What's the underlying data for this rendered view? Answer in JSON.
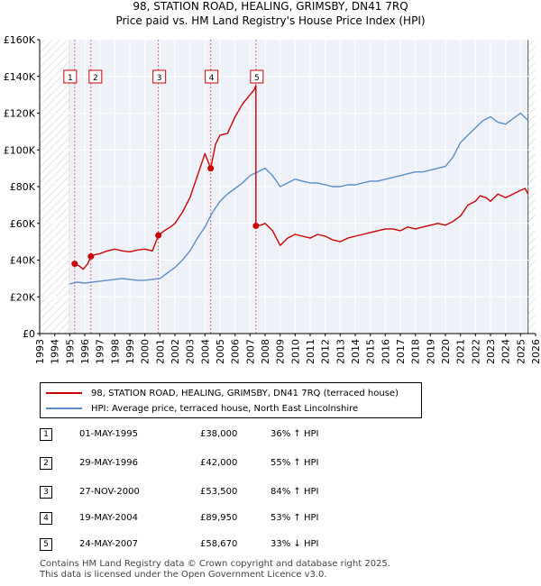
{
  "title_line1": "98, STATION ROAD, HEALING, GRIMSBY, DN41 7RQ",
  "title_line2": "Price paid vs. HM Land Registry's House Price Index (HPI)",
  "colors": {
    "property": "#cc0000",
    "hpi": "#5b8dc9",
    "grid": "#ffffff",
    "plot_bg": "#eef2f8",
    "hatch": "#d6d6d6",
    "sale_line": "#e06666"
  },
  "chart_data": {
    "type": "line",
    "title": "Price paid vs. HM Land Registry's House Price Index (HPI)",
    "xlabel": "",
    "ylabel": "",
    "xlim": [
      1993,
      2026
    ],
    "ylim": [
      0,
      160000
    ],
    "y_ticks": [
      0,
      20000,
      40000,
      60000,
      80000,
      100000,
      120000,
      140000,
      160000
    ],
    "y_tick_labels": [
      "£0",
      "£20K",
      "£40K",
      "£60K",
      "£80K",
      "£100K",
      "£120K",
      "£140K",
      "£160K"
    ],
    "x_ticks": [
      "1993",
      "1994",
      "1995",
      "1996",
      "1997",
      "1998",
      "1999",
      "2000",
      "2001",
      "2002",
      "2003",
      "2004",
      "2005",
      "2006",
      "2007",
      "2008",
      "2009",
      "2010",
      "2011",
      "2012",
      "2013",
      "2014",
      "2015",
      "2016",
      "2017",
      "2018",
      "2019",
      "2020",
      "2021",
      "2022",
      "2023",
      "2024",
      "2025",
      "2026"
    ],
    "data_range": [
      1995.0,
      2025.5
    ],
    "series": [
      {
        "name": "98, STATION ROAD, HEALING, GRIMSBY, DN41 7RQ (terraced house)",
        "color": "#cc0000",
        "x": [
          1995.33,
          1995.6,
          1995.9,
          1996.2,
          1996.41,
          1996.7,
          1997.0,
          1997.5,
          1998.0,
          1998.5,
          1999.0,
          1999.5,
          2000.0,
          2000.5,
          2000.9,
          2001.3,
          2001.7,
          2002.0,
          2002.5,
          2003.0,
          2003.5,
          2004.0,
          2004.38,
          2004.7,
          2005.0,
          2005.5,
          2006.0,
          2006.5,
          2007.0,
          2007.3,
          2007.39,
          2007.39,
          2007.7,
          2008.0,
          2008.5,
          2009.0,
          2009.5,
          2010.0,
          2010.5,
          2011.0,
          2011.5,
          2012.0,
          2012.5,
          2013.0,
          2013.5,
          2014.0,
          2014.5,
          2015.0,
          2015.5,
          2016.0,
          2016.5,
          2017.0,
          2017.5,
          2018.0,
          2018.5,
          2019.0,
          2019.5,
          2020.0,
          2020.5,
          2021.0,
          2021.5,
          2022.0,
          2022.3,
          2022.7,
          2023.0,
          2023.5,
          2024.0,
          2024.5,
          2025.0,
          2025.3,
          2025.5
        ],
        "y": [
          38000,
          37000,
          35000,
          38000,
          42000,
          43000,
          43500,
          45000,
          46000,
          45000,
          44500,
          45500,
          46000,
          45000,
          53500,
          56000,
          58000,
          60000,
          66000,
          74000,
          86000,
          98000,
          89950,
          103000,
          108000,
          109000,
          118000,
          125000,
          130000,
          133000,
          135000,
          58670,
          59000,
          60000,
          56000,
          48000,
          52000,
          54000,
          53000,
          52000,
          54000,
          53000,
          51000,
          50000,
          52000,
          53000,
          54000,
          55000,
          56000,
          57000,
          57000,
          56000,
          58000,
          57000,
          58000,
          59000,
          60000,
          59000,
          61000,
          64000,
          70000,
          72000,
          75000,
          74000,
          72000,
          76000,
          74000,
          76000,
          78000,
          79000,
          76000
        ]
      },
      {
        "name": "HPI: Average price, terraced house, North East Lincolnshire",
        "color": "#5b8dc9",
        "x": [
          1995.0,
          1995.5,
          1996.0,
          1996.5,
          1997.0,
          1997.5,
          1998.0,
          1998.5,
          1999.0,
          1999.5,
          2000.0,
          2000.5,
          2001.0,
          2001.5,
          2002.0,
          2002.5,
          2003.0,
          2003.5,
          2004.0,
          2004.5,
          2005.0,
          2005.5,
          2006.0,
          2006.5,
          2007.0,
          2007.5,
          2008.0,
          2008.5,
          2009.0,
          2009.5,
          2010.0,
          2010.5,
          2011.0,
          2011.5,
          2012.0,
          2012.5,
          2013.0,
          2013.5,
          2014.0,
          2014.5,
          2015.0,
          2015.5,
          2016.0,
          2016.5,
          2017.0,
          2017.5,
          2018.0,
          2018.5,
          2019.0,
          2019.5,
          2020.0,
          2020.5,
          2021.0,
          2021.5,
          2022.0,
          2022.5,
          2023.0,
          2023.5,
          2024.0,
          2024.5,
          2025.0,
          2025.5
        ],
        "y": [
          27000,
          28000,
          27500,
          28000,
          28500,
          29000,
          29500,
          30000,
          29500,
          29000,
          29000,
          29500,
          30000,
          33000,
          36000,
          40000,
          45000,
          52000,
          58000,
          66000,
          72000,
          76000,
          79000,
          82000,
          86000,
          88000,
          90000,
          86000,
          80000,
          82000,
          84000,
          83000,
          82000,
          82000,
          81000,
          80000,
          80000,
          81000,
          81000,
          82000,
          83000,
          83000,
          84000,
          85000,
          86000,
          87000,
          88000,
          88000,
          89000,
          90000,
          91000,
          96000,
          104000,
          108000,
          112000,
          116000,
          118000,
          115000,
          114000,
          117000,
          120000,
          116000
        ]
      }
    ],
    "sales": [
      {
        "id": "1",
        "x": 1995.33,
        "price": 38000
      },
      {
        "id": "2",
        "x": 1996.41,
        "price": 42000
      },
      {
        "id": "3",
        "x": 2000.9,
        "price": 53500
      },
      {
        "id": "4",
        "x": 2004.38,
        "price": 89950
      },
      {
        "id": "5",
        "x": 2007.39,
        "price": 58670
      }
    ]
  },
  "legend": {
    "property_label": "98, STATION ROAD, HEALING, GRIMSBY, DN41 7RQ (terraced house)",
    "hpi_label": "HPI: Average price, terraced house, North East Lincolnshire"
  },
  "transactions": [
    {
      "id": "1",
      "date": "01-MAY-1995",
      "price": "£38,000",
      "hpi": "36% ↑ HPI"
    },
    {
      "id": "2",
      "date": "29-MAY-1996",
      "price": "£42,000",
      "hpi": "55% ↑ HPI"
    },
    {
      "id": "3",
      "date": "27-NOV-2000",
      "price": "£53,500",
      "hpi": "84% ↑ HPI"
    },
    {
      "id": "4",
      "date": "19-MAY-2004",
      "price": "£89,950",
      "hpi": "53% ↑ HPI"
    },
    {
      "id": "5",
      "date": "24-MAY-2007",
      "price": "£58,670",
      "hpi": "33% ↓ HPI"
    }
  ],
  "footer_line1": "Contains HM Land Registry data © Crown copyright and database right 2025.",
  "footer_line2": "This data is licensed under the Open Government Licence v3.0."
}
